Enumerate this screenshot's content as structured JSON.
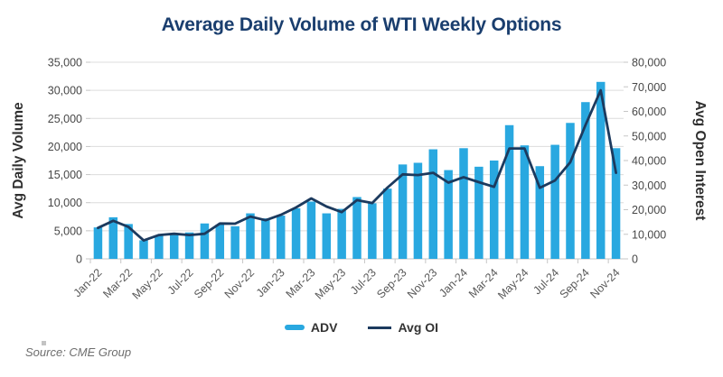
{
  "title": "Average Daily Volume of WTI Weekly Options",
  "source_note": "Source: CME Group",
  "legend": {
    "adv_label": "ADV",
    "oi_label": "Avg OI"
  },
  "colors": {
    "bar": "#29a8e0",
    "line": "#1c3a5e",
    "title": "#1a3e6e",
    "grid": "#dcdcdc",
    "axis": "#c6c6c6",
    "tick_text": "#474747",
    "xtick_text": "#595959",
    "axis_title_text": "#2f2f2f"
  },
  "chart_data": {
    "type": "bar+line",
    "title": "Average Daily Volume of WTI Weekly Options",
    "left_axis": {
      "label": "Avg Daily Volume",
      "min": 0,
      "max": 35000,
      "step": 5000,
      "ticks": [
        "0",
        "5,000",
        "10,000",
        "15,000",
        "20,000",
        "25,000",
        "30,000",
        "35,000"
      ]
    },
    "right_axis": {
      "label": "Avg Open Interest",
      "min": 0,
      "max": 80000,
      "step": 10000,
      "ticks": [
        "0",
        "10,000",
        "20,000",
        "30,000",
        "40,000",
        "50,000",
        "60,000",
        "70,000",
        "80,000"
      ]
    },
    "categories": [
      "Jan-22",
      "Feb-22",
      "Mar-22",
      "Apr-22",
      "May-22",
      "Jun-22",
      "Jul-22",
      "Aug-22",
      "Sep-22",
      "Oct-22",
      "Nov-22",
      "Dec-22",
      "Jan-23",
      "Feb-23",
      "Mar-23",
      "Apr-23",
      "May-23",
      "Jun-23",
      "Jul-23",
      "Aug-23",
      "Sep-23",
      "Oct-23",
      "Nov-23",
      "Dec-23",
      "Jan-24",
      "Feb-24",
      "Mar-24",
      "Apr-24",
      "May-24",
      "Jun-24",
      "Jul-24",
      "Aug-24",
      "Sep-24",
      "Oct-24",
      "Nov-24"
    ],
    "x_label_every": 2,
    "legend_position": "bottom-center",
    "grid": "horizontal",
    "series": [
      {
        "name": "ADV",
        "type": "bar",
        "axis": "left",
        "values": [
          5600,
          7400,
          6200,
          3300,
          4100,
          4500,
          4700,
          6300,
          6100,
          5800,
          8100,
          7200,
          7700,
          9000,
          10200,
          8100,
          8900,
          11000,
          9900,
          12500,
          16800,
          17100,
          19500,
          15800,
          19700,
          16400,
          17500,
          23800,
          20200,
          16500,
          20300,
          24200,
          27900,
          31500,
          19700
        ]
      },
      {
        "name": "Avg OI",
        "type": "line",
        "axis": "right",
        "values": [
          12600,
          15500,
          13000,
          7500,
          9700,
          10200,
          9700,
          10200,
          14400,
          14300,
          17200,
          15700,
          17900,
          20900,
          24600,
          21300,
          19000,
          23900,
          22700,
          29000,
          34400,
          34100,
          35000,
          31000,
          33200,
          31200,
          29300,
          44900,
          44900,
          28900,
          31900,
          39300,
          54500,
          68600,
          35000
        ]
      }
    ]
  }
}
